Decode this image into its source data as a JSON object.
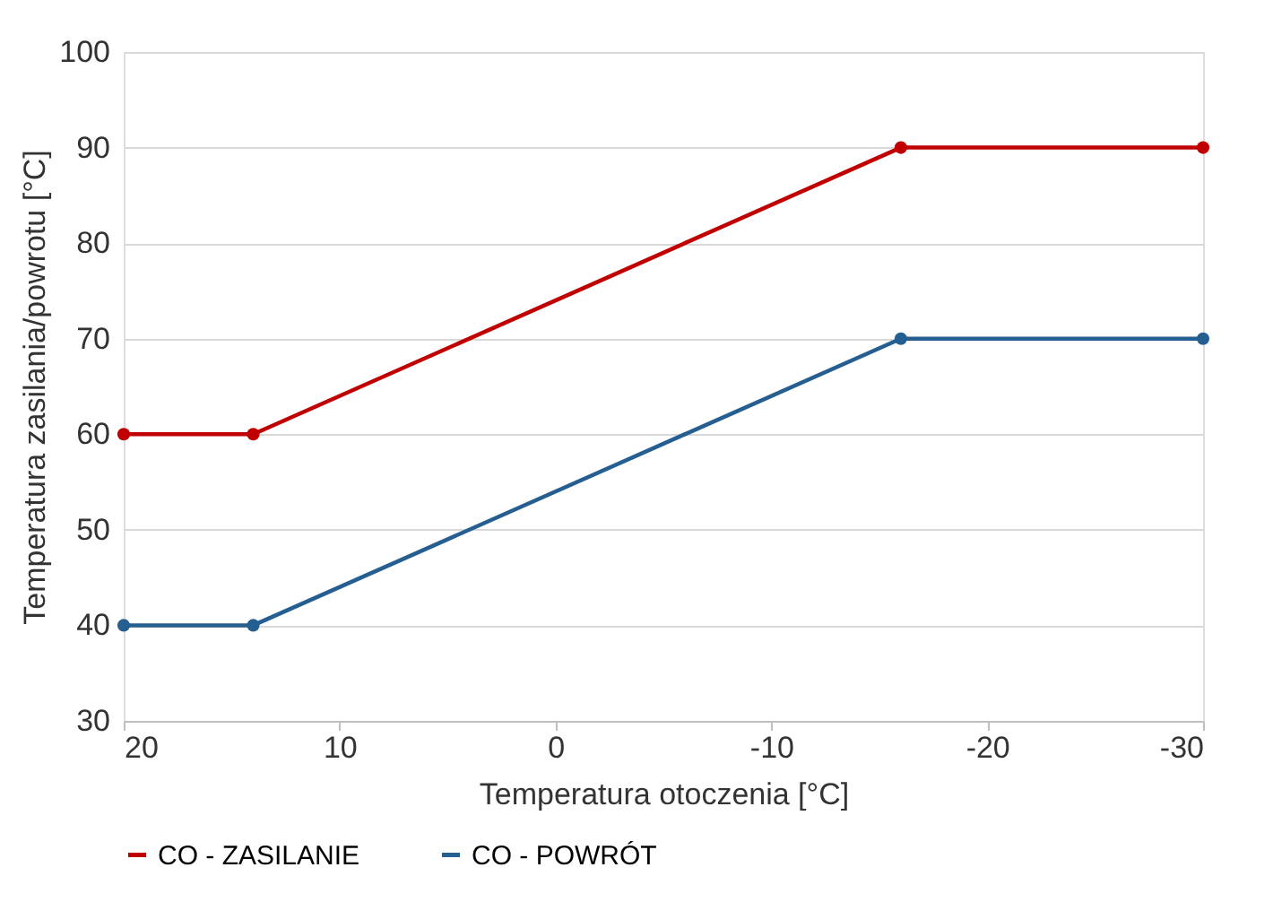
{
  "chart_data": {
    "type": "line",
    "xlabel": "Temperatura otoczenia [°C]",
    "ylabel": "Temperatura zasilania/powrotu [°C]",
    "x": [
      20,
      14,
      -16,
      -30
    ],
    "series": [
      {
        "name": "CO - ZASILANIE",
        "color": "#c00000",
        "values": [
          60,
          60,
          90,
          90
        ]
      },
      {
        "name": "CO - POWRÓT",
        "color": "#255e91",
        "values": [
          40,
          40,
          70,
          70
        ]
      }
    ],
    "xlim": [
      20,
      -30
    ],
    "xticks": [
      20,
      10,
      0,
      -10,
      -20,
      -30
    ],
    "ylim": [
      30,
      100
    ],
    "yticks": [
      30,
      40,
      50,
      60,
      70,
      80,
      90,
      100
    ],
    "grid": "y",
    "legend": "bottom",
    "marker": "circle",
    "line_style": "solid"
  }
}
